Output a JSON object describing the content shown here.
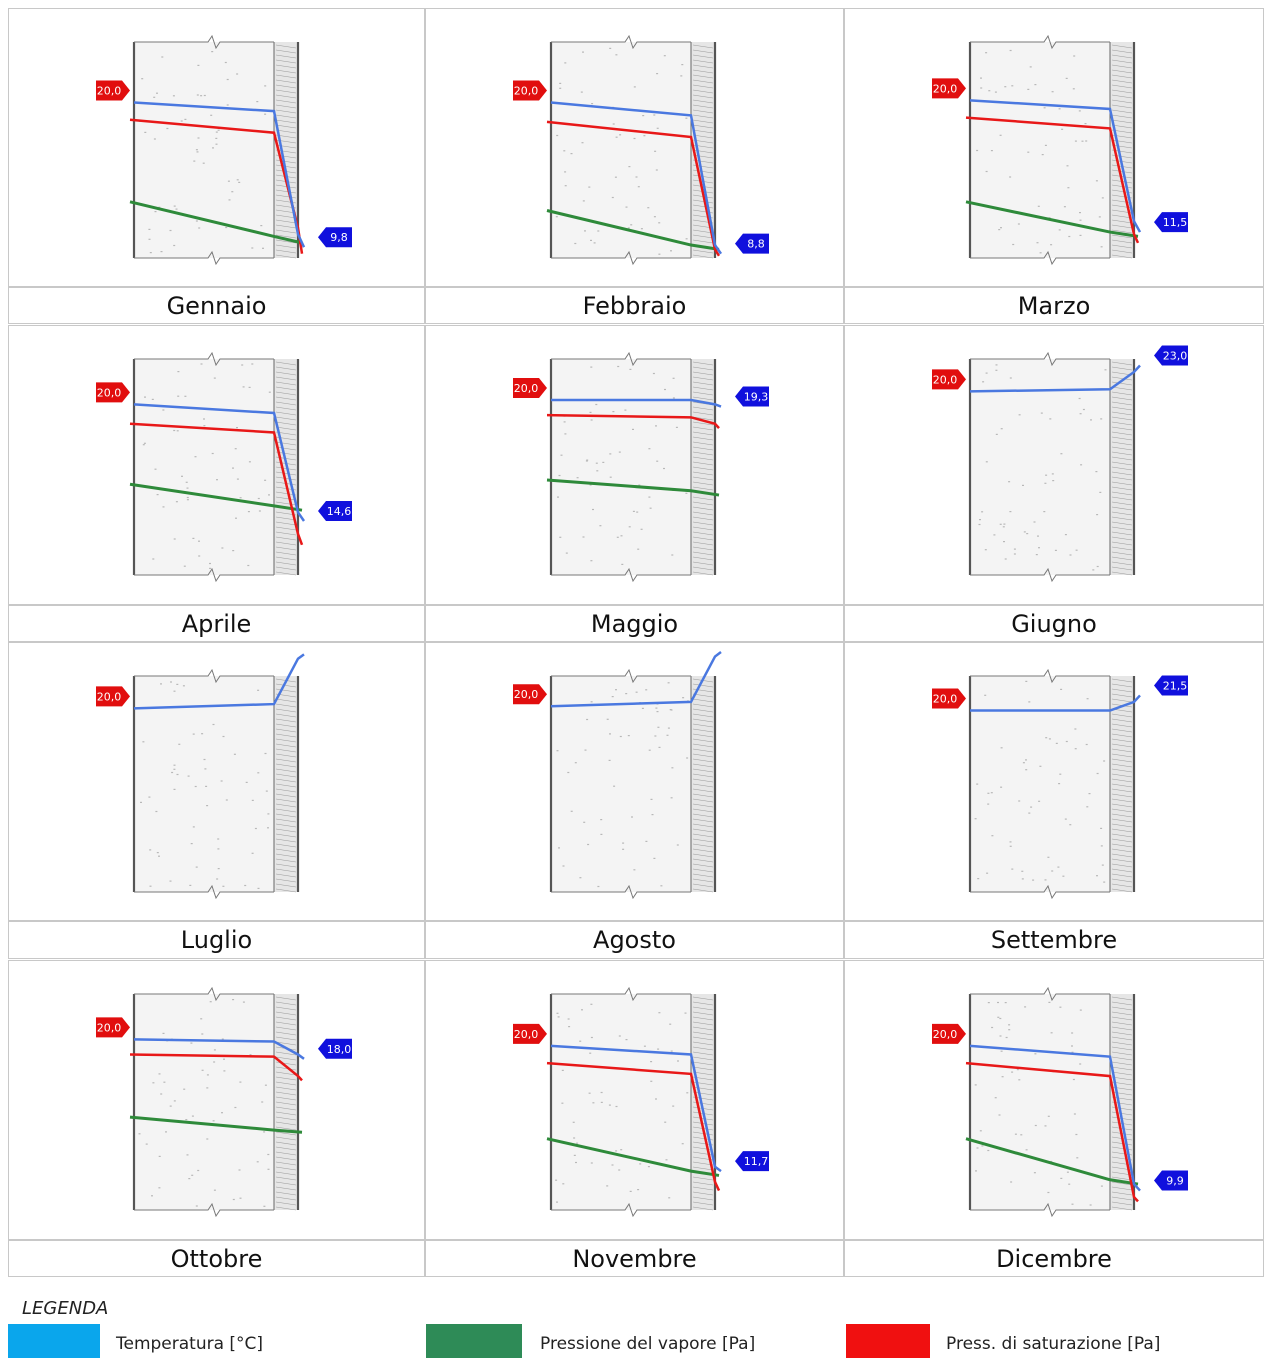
{
  "colors": {
    "temperature": "#4a78e0",
    "vapour_pressure": "#2e8a3a",
    "saturation_pressure": "#e81818",
    "tag_inside": "#e10e0e",
    "tag_outside": "#1010dd",
    "legend_temperature": "#0aa6ec",
    "legend_vapour": "#2e8b57",
    "legend_saturation": "#f01010"
  },
  "chart_data": [
    {
      "type": "line",
      "month": "Gennaio",
      "inside_temp": "20,0",
      "outside_temp": "9,8",
      "temperature": [
        0.72,
        0.68,
        0.11,
        0.05
      ],
      "saturation": [
        0.64,
        0.58,
        0.14,
        0.02
      ],
      "vapour": [
        0.26,
        0.1,
        0.07
      ]
    },
    {
      "type": "line",
      "month": "Febbraio",
      "inside_temp": "20,0",
      "outside_temp": "8,8",
      "temperature": [
        0.72,
        0.66,
        0.06,
        0.02
      ],
      "saturation": [
        0.63,
        0.56,
        0.04,
        0.01
      ],
      "vapour": [
        0.22,
        0.06,
        0.04
      ]
    },
    {
      "type": "line",
      "month": "Marzo",
      "inside_temp": "20,0",
      "outside_temp": "11,5",
      "temperature": [
        0.73,
        0.69,
        0.17,
        0.12
      ],
      "saturation": [
        0.65,
        0.6,
        0.11,
        0.07
      ],
      "vapour": [
        0.26,
        0.12,
        0.1
      ]
    },
    {
      "type": "line",
      "month": "Aprile",
      "inside_temp": "20,0",
      "outside_temp": "14,6",
      "temperature": [
        0.79,
        0.75,
        0.29,
        0.25
      ],
      "saturation": [
        0.7,
        0.66,
        0.19,
        0.14
      ],
      "vapour": [
        0.42,
        0.32,
        0.3
      ]
    },
    {
      "type": "line",
      "month": "Maggio",
      "inside_temp": "20,0",
      "outside_temp": "19,3",
      "temperature": [
        0.81,
        0.81,
        0.79,
        0.78
      ],
      "saturation": [
        0.74,
        0.73,
        0.7,
        0.68
      ],
      "vapour": [
        0.44,
        0.39,
        0.37
      ]
    },
    {
      "type": "line",
      "month": "Giugno",
      "inside_temp": "20,0",
      "outside_temp": "23,0",
      "temperature": [
        0.85,
        0.86,
        0.94,
        0.97
      ],
      "saturation": null,
      "vapour": null
    },
    {
      "type": "line",
      "month": "Luglio",
      "inside_temp": "20,0",
      "outside_temp": "",
      "temperature": [
        0.85,
        0.87,
        1.08,
        1.1
      ],
      "saturation": null,
      "vapour": null
    },
    {
      "type": "line",
      "month": "Agosto",
      "inside_temp": "20,0",
      "outside_temp": "",
      "temperature": [
        0.86,
        0.88,
        1.09,
        1.12
      ],
      "saturation": null,
      "vapour": null
    },
    {
      "type": "line",
      "month": "Settembre",
      "inside_temp": "20,0",
      "outside_temp": "21,5",
      "temperature": [
        0.84,
        0.84,
        0.88,
        0.91
      ],
      "saturation": null,
      "vapour": null
    },
    {
      "type": "line",
      "month": "Ottobre",
      "inside_temp": "20,0",
      "outside_temp": "18,0",
      "temperature": [
        0.79,
        0.78,
        0.72,
        0.7
      ],
      "saturation": [
        0.72,
        0.71,
        0.62,
        0.6
      ],
      "vapour": [
        0.43,
        0.37,
        0.36
      ]
    },
    {
      "type": "line",
      "month": "Novembre",
      "inside_temp": "20,0",
      "outside_temp": "11,7",
      "temperature": [
        0.76,
        0.72,
        0.2,
        0.18
      ],
      "saturation": [
        0.68,
        0.63,
        0.13,
        0.09
      ],
      "vapour": [
        0.33,
        0.18,
        0.16
      ]
    },
    {
      "type": "line",
      "month": "Dicembre",
      "inside_temp": "20,0",
      "outside_temp": "9,9",
      "temperature": [
        0.76,
        0.71,
        0.12,
        0.09
      ],
      "saturation": [
        0.68,
        0.62,
        0.06,
        0.04
      ],
      "vapour": [
        0.33,
        0.14,
        0.12
      ]
    }
  ],
  "legend": {
    "title": "LEGENDA",
    "items": [
      {
        "label": "Temperatura [°C]"
      },
      {
        "label": "Pressione del vapore [Pa]"
      },
      {
        "label": "Press. di saturazione [Pa]"
      }
    ]
  }
}
